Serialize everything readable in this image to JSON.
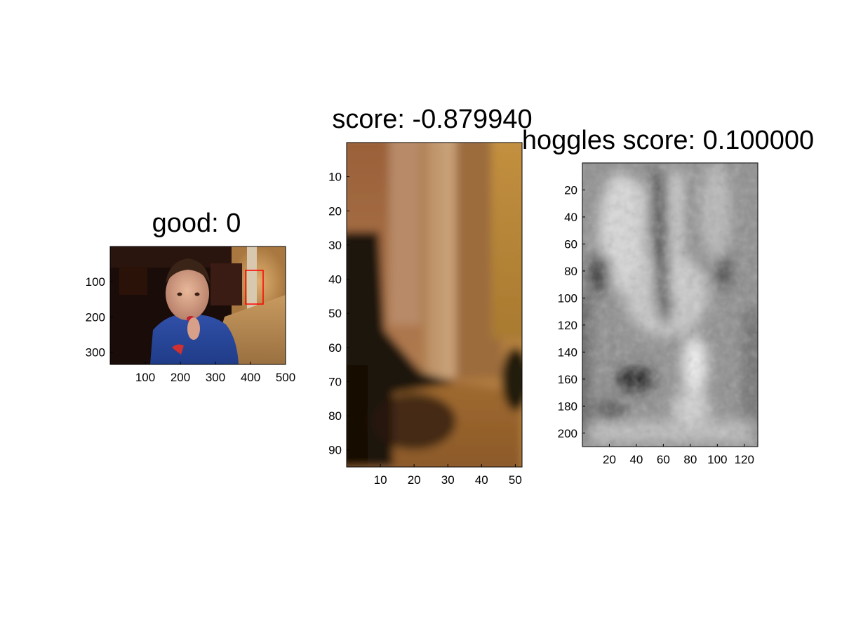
{
  "chart_data": [
    {
      "type": "image",
      "title": "good: 0",
      "xlabel": "",
      "ylabel": "",
      "xlim": [
        0,
        500
      ],
      "ylim": [
        0,
        335
      ],
      "xticks": [
        "100",
        "200",
        "300",
        "400",
        "500"
      ],
      "yticks": [
        "100",
        "200",
        "300"
      ],
      "xtick_values": [
        100,
        200,
        300,
        400,
        500
      ],
      "ytick_values": [
        100,
        200,
        300
      ],
      "annotations": [
        {
          "type": "rectangle",
          "color": "#ff0000",
          "x": [
            383,
            433
          ],
          "y": [
            68,
            165
          ]
        }
      ],
      "grid": false
    },
    {
      "type": "image",
      "title": "score: -0.879940",
      "xlabel": "",
      "ylabel": "",
      "xlim": [
        0,
        52
      ],
      "ylim": [
        0,
        95
      ],
      "xticks": [
        "10",
        "20",
        "30",
        "40",
        "50"
      ],
      "yticks": [
        "10",
        "20",
        "30",
        "40",
        "50",
        "60",
        "70",
        "80",
        "90"
      ],
      "xtick_values": [
        10,
        20,
        30,
        40,
        50
      ],
      "ytick_values": [
        10,
        20,
        30,
        40,
        50,
        60,
        70,
        80,
        90
      ],
      "grid": false
    },
    {
      "type": "heatmap",
      "title": "hoggles score: 0.100000",
      "xlabel": "",
      "ylabel": "",
      "colormap": "gray",
      "xlim": [
        0,
        130
      ],
      "ylim": [
        0,
        210
      ],
      "xticks": [
        "20",
        "40",
        "60",
        "80",
        "100",
        "120"
      ],
      "yticks": [
        "20",
        "40",
        "60",
        "80",
        "100",
        "120",
        "140",
        "160",
        "180",
        "200"
      ],
      "xtick_values": [
        20,
        40,
        60,
        80,
        100,
        120
      ],
      "ytick_values": [
        20,
        40,
        60,
        80,
        100,
        120,
        140,
        160,
        180,
        200
      ],
      "grid": false
    }
  ]
}
